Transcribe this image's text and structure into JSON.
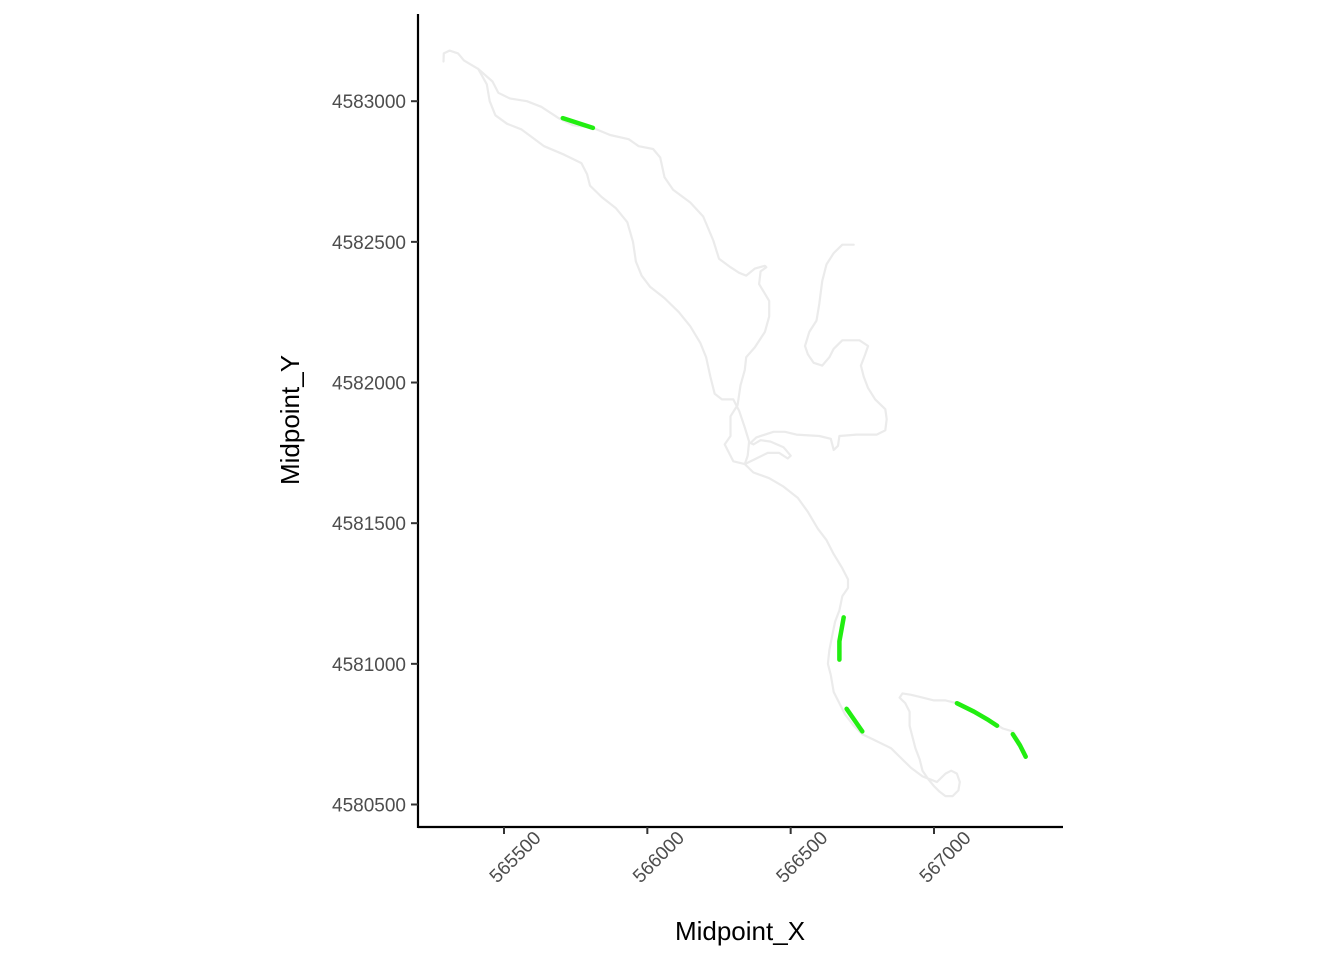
{
  "chart_data": {
    "type": "line",
    "title": "",
    "xlabel": "Midpoint_X",
    "ylabel": "Midpoint_Y",
    "xlim": [
      565200,
      567450
    ],
    "ylim": [
      4580420,
      4583310
    ],
    "x_ticks": [
      565500,
      566000,
      566500,
      567000
    ],
    "x_tick_labels": [
      "565500",
      "566000",
      "566500",
      "567000"
    ],
    "y_ticks": [
      4580500,
      4581000,
      4581500,
      4582000,
      4582500,
      4583000
    ],
    "y_tick_labels": [
      "4580500",
      "4581000",
      "4581500",
      "4582000",
      "4582500",
      "4583000"
    ],
    "grid": false,
    "legend": "none",
    "colors": {
      "stream": "#ebebeb",
      "highlight": "#22ee11",
      "axis": "#000000"
    },
    "series": [
      {
        "role": "stream-network",
        "color": "#ebebeb",
        "paths": [
          [
            [
              565289,
              4583141
            ],
            [
              565290,
              4583170
            ],
            [
              565310,
              4583180
            ],
            [
              565340,
              4583170
            ],
            [
              565360,
              4583145
            ],
            [
              565410,
              4583115
            ],
            [
              565460,
              4583070
            ],
            [
              565480,
              4583030
            ],
            [
              565520,
              4583010
            ],
            [
              565580,
              4583000
            ],
            [
              565630,
              4582980
            ],
            [
              565690,
              4582940
            ],
            [
              565740,
              4582915
            ],
            [
              565810,
              4582905
            ],
            [
              565870,
              4582880
            ],
            [
              565935,
              4582865
            ],
            [
              565970,
              4582840
            ],
            [
              566020,
              4582830
            ],
            [
              566045,
              4582800
            ],
            [
              566060,
              4582730
            ],
            [
              566090,
              4582685
            ],
            [
              566150,
              4582640
            ],
            [
              566195,
              4582590
            ],
            [
              566230,
              4582505
            ],
            [
              566250,
              4582440
            ],
            [
              566290,
              4582410
            ],
            [
              566320,
              4582390
            ],
            [
              566345,
              4582380
            ],
            [
              566375,
              4582405
            ],
            [
              566410,
              4582415
            ],
            [
              566415,
              4582410
            ],
            [
              566395,
              4582395
            ],
            [
              566390,
              4582350
            ],
            [
              566425,
              4582290
            ],
            [
              566425,
              4582235
            ],
            [
              566410,
              4582180
            ],
            [
              566375,
              4582125
            ],
            [
              566345,
              4582090
            ],
            [
              566340,
              4582045
            ],
            [
              566325,
              4581990
            ],
            [
              566315,
              4581920
            ],
            [
              566290,
              4581880
            ],
            [
              566290,
              4581810
            ],
            [
              566270,
              4581780
            ],
            [
              566300,
              4581720
            ],
            [
              566340,
              4581710
            ],
            [
              566380,
              4581730
            ],
            [
              566420,
              4581750
            ],
            [
              566460,
              4581750
            ],
            [
              566490,
              4581730
            ],
            [
              566500,
              4581740
            ],
            [
              566475,
              4581770
            ],
            [
              566430,
              4581790
            ],
            [
              566395,
              4581795
            ],
            [
              566370,
              4581780
            ],
            [
              566360,
              4581785
            ],
            [
              566380,
              4581805
            ],
            [
              566440,
              4581825
            ],
            [
              566480,
              4581825
            ],
            [
              566520,
              4581815
            ],
            [
              566600,
              4581810
            ],
            [
              566640,
              4581800
            ],
            [
              566650,
              4581760
            ],
            [
              566665,
              4581775
            ],
            [
              566670,
              4581810
            ],
            [
              566730,
              4581815
            ],
            [
              566800,
              4581815
            ],
            [
              566830,
              4581830
            ],
            [
              566835,
              4581870
            ],
            [
              566830,
              4581905
            ],
            [
              566795,
              4581940
            ],
            [
              566770,
              4581980
            ],
            [
              566755,
              4582020
            ],
            [
              566745,
              4582060
            ],
            [
              566760,
              4582100
            ],
            [
              566770,
              4582130
            ],
            [
              566740,
              4582150
            ],
            [
              566680,
              4582150
            ],
            [
              566650,
              4582120
            ],
            [
              566635,
              4582090
            ],
            [
              566610,
              4582060
            ],
            [
              566580,
              4582070
            ],
            [
              566560,
              4582100
            ],
            [
              566550,
              4582130
            ],
            [
              566565,
              4582180
            ],
            [
              566590,
              4582220
            ],
            [
              566600,
              4582280
            ],
            [
              566610,
              4582360
            ],
            [
              566625,
              4582420
            ],
            [
              566650,
              4582460
            ],
            [
              566680,
              4582490
            ],
            [
              566720,
              4582490
            ]
          ],
          [
            [
              565410,
              4583115
            ],
            [
              565440,
              4583060
            ],
            [
              565450,
              4583000
            ],
            [
              565470,
              4582950
            ],
            [
              565510,
              4582920
            ],
            [
              565560,
              4582900
            ],
            [
              565600,
              4582870
            ],
            [
              565640,
              4582840
            ],
            [
              565710,
              4582810
            ],
            [
              565770,
              4582780
            ],
            [
              565790,
              4582740
            ],
            [
              565800,
              4582700
            ],
            [
              565840,
              4582660
            ],
            [
              565890,
              4582620
            ],
            [
              565930,
              4582570
            ],
            [
              565950,
              4582500
            ],
            [
              565960,
              4582430
            ],
            [
              565980,
              4582380
            ],
            [
              566010,
              4582340
            ],
            [
              566060,
              4582300
            ],
            [
              566110,
              4582250
            ],
            [
              566150,
              4582200
            ],
            [
              566185,
              4582140
            ],
            [
              566205,
              4582090
            ],
            [
              566220,
              4582020
            ],
            [
              566235,
              4581960
            ],
            [
              566260,
              4581940
            ],
            [
              566300,
              4581940
            ],
            [
              566320,
              4581900
            ],
            [
              566340,
              4581840
            ],
            [
              566355,
              4581790
            ],
            [
              566350,
              4581740
            ],
            [
              566340,
              4581710
            ],
            [
              566370,
              4581680
            ],
            [
              566425,
              4581660
            ],
            [
              566475,
              4581630
            ],
            [
              566525,
              4581590
            ],
            [
              566560,
              4581540
            ],
            [
              566595,
              4581480
            ],
            [
              566625,
              4581440
            ],
            [
              566650,
              4581390
            ],
            [
              566680,
              4581340
            ],
            [
              566700,
              4581300
            ],
            [
              566700,
              4581270
            ],
            [
              566680,
              4581240
            ],
            [
              566670,
              4581190
            ],
            [
              566655,
              4581150
            ],
            [
              566645,
              4581100
            ],
            [
              566635,
              4581050
            ],
            [
              566630,
              4581000
            ],
            [
              566640,
              4580960
            ],
            [
              566650,
              4580900
            ],
            [
              566670,
              4580860
            ],
            [
              566690,
              4580820
            ],
            [
              566720,
              4580780
            ],
            [
              566750,
              4580750
            ],
            [
              566790,
              4580730
            ],
            [
              566850,
              4580700
            ],
            [
              566890,
              4580660
            ],
            [
              566920,
              4580630
            ],
            [
              566960,
              4580600
            ],
            [
              566985,
              4580590
            ],
            [
              567010,
              4580580
            ],
            [
              567025,
              4580595
            ],
            [
              567040,
              4580610
            ],
            [
              567060,
              4580620
            ],
            [
              567080,
              4580610
            ],
            [
              567090,
              4580580
            ],
            [
              567085,
              4580550
            ],
            [
              567065,
              4580530
            ],
            [
              567040,
              4580530
            ],
            [
              567020,
              4580545
            ],
            [
              567000,
              4580565
            ],
            [
              566980,
              4580590
            ],
            [
              566960,
              4580620
            ],
            [
              566950,
              4580660
            ],
            [
              566935,
              4580700
            ],
            [
              566925,
              4580740
            ],
            [
              566915,
              4580780
            ],
            [
              566915,
              4580830
            ],
            [
              566900,
              4580860
            ],
            [
              566880,
              4580880
            ],
            [
              566890,
              4580895
            ],
            [
              566920,
              4580890
            ],
            [
              566960,
              4580880
            ],
            [
              567000,
              4580870
            ],
            [
              567040,
              4580870
            ],
            [
              567080,
              4580860
            ],
            [
              567140,
              4580830
            ],
            [
              567190,
              4580800
            ],
            [
              567240,
              4580770
            ],
            [
              567275,
              4580760
            ],
            [
              567300,
              4580720
            ],
            [
              567320,
              4580680
            ]
          ]
        ]
      },
      {
        "role": "highlighted-segments",
        "color": "#22ee11",
        "paths": [
          [
            [
              565705,
              4582940
            ],
            [
              565810,
              4582905
            ]
          ],
          [
            [
              566685,
              4581165
            ],
            [
              566670,
              4581080
            ],
            [
              566670,
              4581015
            ]
          ],
          [
            [
              566695,
              4580840
            ],
            [
              566750,
              4580760
            ]
          ],
          [
            [
              567080,
              4580860
            ],
            [
              567140,
              4580830
            ],
            [
              567190,
              4580800
            ],
            [
              567220,
              4580780
            ]
          ],
          [
            [
              567275,
              4580750
            ],
            [
              567300,
              4580710
            ],
            [
              567320,
              4580670
            ]
          ]
        ]
      }
    ]
  }
}
